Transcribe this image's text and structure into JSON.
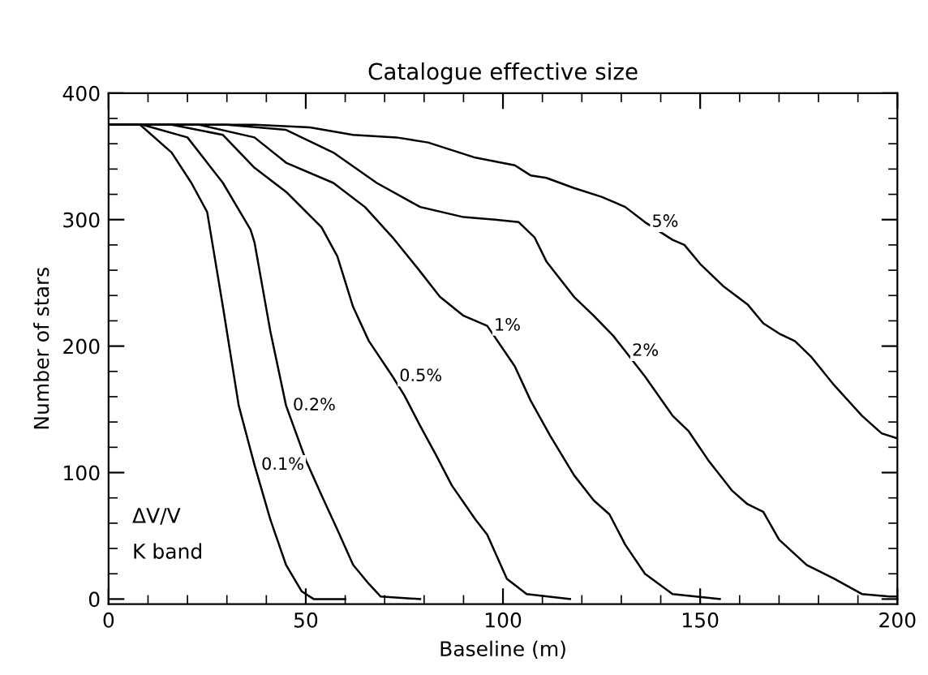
{
  "chart_data": {
    "type": "line",
    "title": "Catalogue effective size",
    "xlabel": "Baseline (m)",
    "ylabel": "Number of stars",
    "xlim": [
      0,
      200
    ],
    "xticks": [
      0,
      50,
      100,
      150,
      200
    ],
    "ylim": [
      -4,
      400
    ],
    "yticks": [
      0,
      100,
      200,
      300,
      400
    ],
    "marker": "none",
    "line_style": "solid",
    "series": [
      {
        "name": "0.1%",
        "color": "#000000",
        "x": [
          0,
          8,
          16,
          21,
          25,
          29,
          33,
          37,
          41,
          45,
          49,
          52,
          58,
          60
        ],
        "values": [
          375,
          375,
          353,
          329,
          306,
          231,
          153,
          106,
          63,
          27,
          6,
          0,
          0,
          0
        ]
      },
      {
        "name": "0.2%",
        "color": "#000000",
        "x": [
          0,
          8.6,
          20,
          29,
          36,
          37,
          41,
          45,
          50,
          54,
          58,
          62,
          66,
          69,
          79
        ],
        "values": [
          375,
          375,
          365,
          329,
          292,
          282,
          212,
          153,
          110,
          82,
          55,
          27,
          12,
          2,
          0
        ]
      },
      {
        "name": "0.5%",
        "color": "#000000",
        "x": [
          0,
          16,
          29,
          37,
          45,
          54,
          58,
          62,
          66,
          72,
          75,
          79,
          83,
          87,
          93,
          96,
          101,
          106,
          117
        ],
        "values": [
          375,
          375,
          367,
          341,
          322,
          294,
          271,
          231,
          204,
          176,
          161,
          137,
          114,
          90,
          63,
          51,
          16,
          4,
          0
        ]
      },
      {
        "name": "1%",
        "color": "#000000",
        "x": [
          0,
          23,
          37,
          45,
          57,
          65,
          72,
          79,
          84,
          90,
          96,
          103,
          107,
          112,
          118,
          123,
          127,
          131,
          136,
          143,
          155
        ],
        "values": [
          375,
          375,
          365,
          345,
          329,
          310,
          286,
          259,
          239,
          224,
          216,
          184,
          157,
          129,
          98,
          78,
          67,
          43,
          20,
          4,
          0
        ]
      },
      {
        "name": "2%",
        "color": "#000000",
        "x": [
          0,
          30,
          45,
          57,
          68,
          79,
          90,
          98,
          104,
          108,
          111,
          118,
          123,
          128,
          131,
          136,
          143,
          147,
          152,
          158,
          162,
          166,
          170,
          177,
          184,
          191,
          198,
          200
        ],
        "values": [
          375,
          375,
          371,
          353,
          329,
          310,
          302,
          300,
          298,
          286,
          267,
          239,
          224,
          208,
          196,
          176,
          145,
          133,
          110,
          86,
          75,
          69,
          47,
          27,
          16,
          4,
          2,
          2
        ]
      },
      {
        "name": "5%",
        "color": "#000000",
        "x": [
          0,
          37,
          51,
          62,
          73,
          81,
          93,
          103,
          107,
          111,
          118,
          125,
          131,
          136,
          143,
          146,
          150,
          156,
          162,
          166,
          170,
          174,
          178,
          184,
          191,
          196,
          200
        ],
        "values": [
          375,
          375,
          373,
          367,
          365,
          361,
          349,
          343,
          335,
          333,
          325,
          318,
          310,
          298,
          284,
          280,
          265,
          247,
          233,
          218,
          210,
          204,
          192,
          169,
          145,
          131,
          127
        ]
      }
    ],
    "annotations": [
      "ΔV/V",
      "K band"
    ]
  }
}
